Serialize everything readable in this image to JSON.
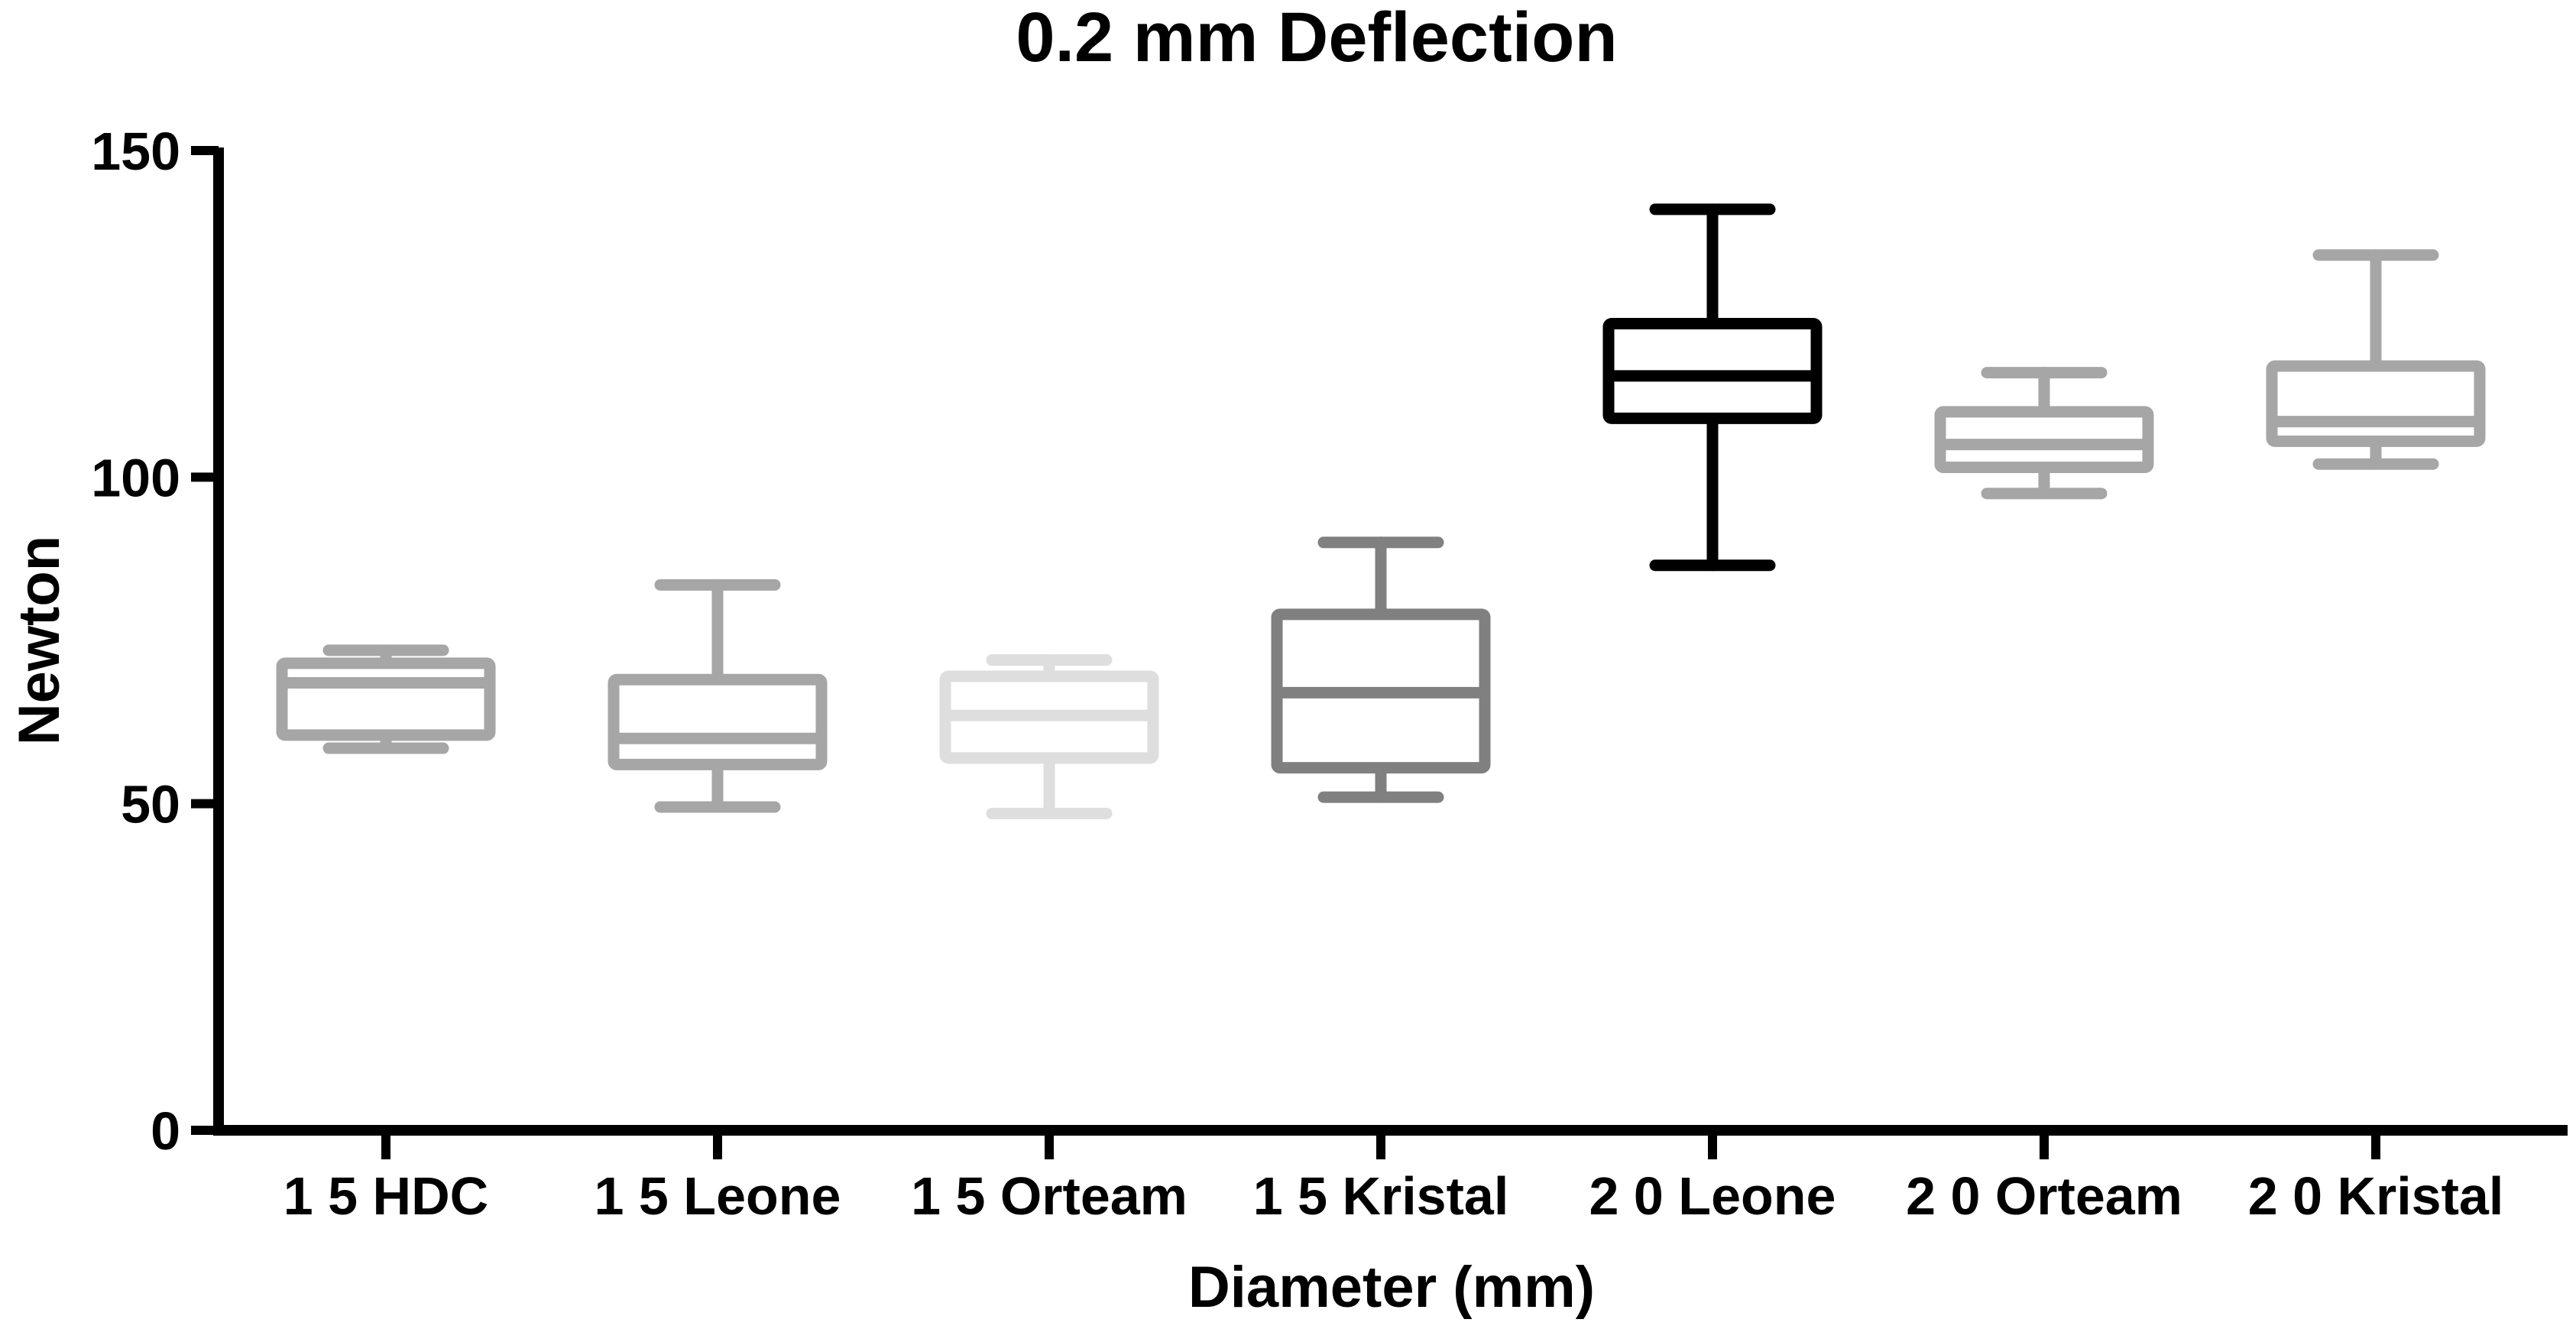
{
  "chart_data": {
    "type": "boxplot",
    "title": "0.2 mm Deflection",
    "xlabel": "Diameter (mm)",
    "ylabel": "Newton",
    "ylim": [
      0,
      150
    ],
    "yticks": [
      0,
      50,
      100,
      150
    ],
    "categories": [
      "1 5 HDC",
      "1 5 Leone",
      "1 5 Orteam",
      "1 5 Kristal",
      "2 0 Leone",
      "2 0 Orteam",
      "2 0 Kristal"
    ],
    "series": [
      {
        "name": "1 5 HDC",
        "min": 58.5,
        "q1": 60.5,
        "median": 68.5,
        "q3": 71.5,
        "max": 73.5,
        "color": "#a6a6a6"
      },
      {
        "name": "1 5 Leone",
        "min": 49.5,
        "q1": 56,
        "median": 60,
        "q3": 69,
        "max": 83.5,
        "color": "#a6a6a6"
      },
      {
        "name": "1 5 Orteam",
        "min": 48.5,
        "q1": 57,
        "median": 63.5,
        "q3": 69.5,
        "max": 72,
        "color": "#dedede"
      },
      {
        "name": "1 5 Kristal",
        "min": 51,
        "q1": 55.5,
        "median": 67,
        "q3": 79,
        "max": 90,
        "color": "#808080"
      },
      {
        "name": "2 0 Leone",
        "min": 86.5,
        "q1": 109,
        "median": 115.5,
        "q3": 123.5,
        "max": 141,
        "color": "#000000"
      },
      {
        "name": "2 0 Orteam",
        "min": 97.5,
        "q1": 101.5,
        "median": 105,
        "q3": 110,
        "max": 116,
        "color": "#a6a6a6"
      },
      {
        "name": "2 0 Kristal",
        "min": 102,
        "q1": 105.5,
        "median": 108.5,
        "q3": 117,
        "max": 134,
        "color": "#a6a6a6"
      }
    ]
  }
}
